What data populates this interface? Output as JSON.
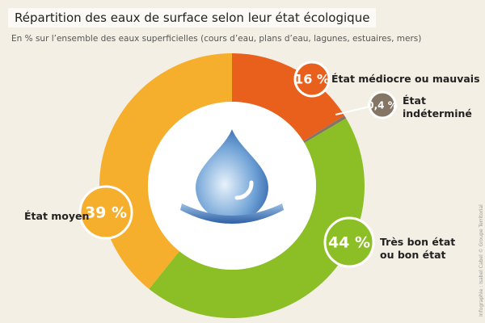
{
  "chart_data": {
    "type": "donut",
    "title": "Répartition des eaux de surface selon leur état écologique",
    "subtitle": "En % sur l’ensemble des eaux superficielles (cours d’eau, plans d’eau, lagunes, estuaires, mers)",
    "credit": "Infographie : Isabel Cabel © Groupe Territorial",
    "categories": [
      "État médiocre ou mauvais",
      "État indéterminé",
      "Très bon état ou bon état",
      "État moyen"
    ],
    "values": [
      16,
      0.4,
      44,
      39
    ],
    "value_labels": [
      "16 %",
      "0,4 %",
      "44 %",
      "39 %"
    ],
    "colors": [
      "#e8601c",
      "#857565",
      "#8cbf26",
      "#f6ae2d"
    ]
  }
}
